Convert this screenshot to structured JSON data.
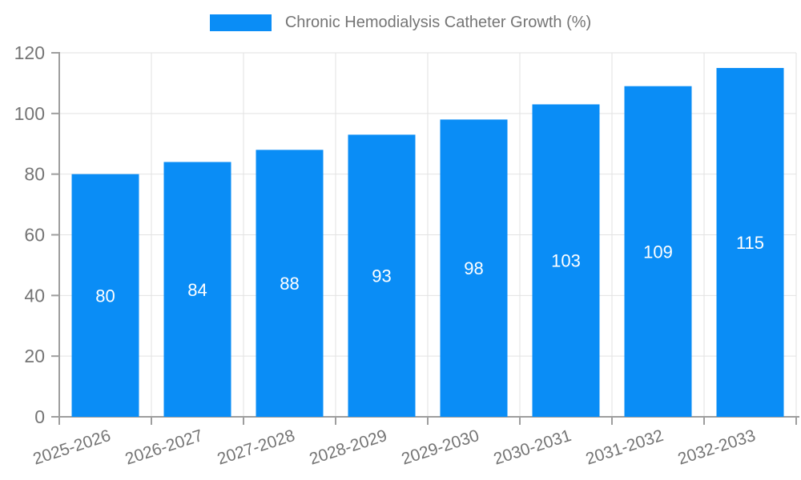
{
  "legend": {
    "label": "Chronic Hemodialysis Catheter Growth (%)"
  },
  "colors": {
    "bar": "#0a8df6",
    "grid": "#e2e2e2",
    "axis": "#9e9e9e",
    "text": "#757575",
    "value_label": "#ffffff",
    "background": "#ffffff"
  },
  "chart_data": {
    "type": "bar",
    "title": "Chronic Hemodialysis Catheter Growth (%)",
    "categories": [
      "2025-2026",
      "2026-2027",
      "2027-2028",
      "2028-2029",
      "2029-2030",
      "2030-2031",
      "2031-2032",
      "2032-2033"
    ],
    "values": [
      80,
      84,
      88,
      93,
      98,
      103,
      109,
      115
    ],
    "xlabel": "",
    "ylabel": "",
    "ylim": [
      0,
      120
    ],
    "yticks": [
      0,
      20,
      40,
      60,
      80,
      100,
      120
    ],
    "grid": true,
    "legend_position": "top-center",
    "bar_labels_inside": true,
    "x_label_rotation_deg": -18
  }
}
